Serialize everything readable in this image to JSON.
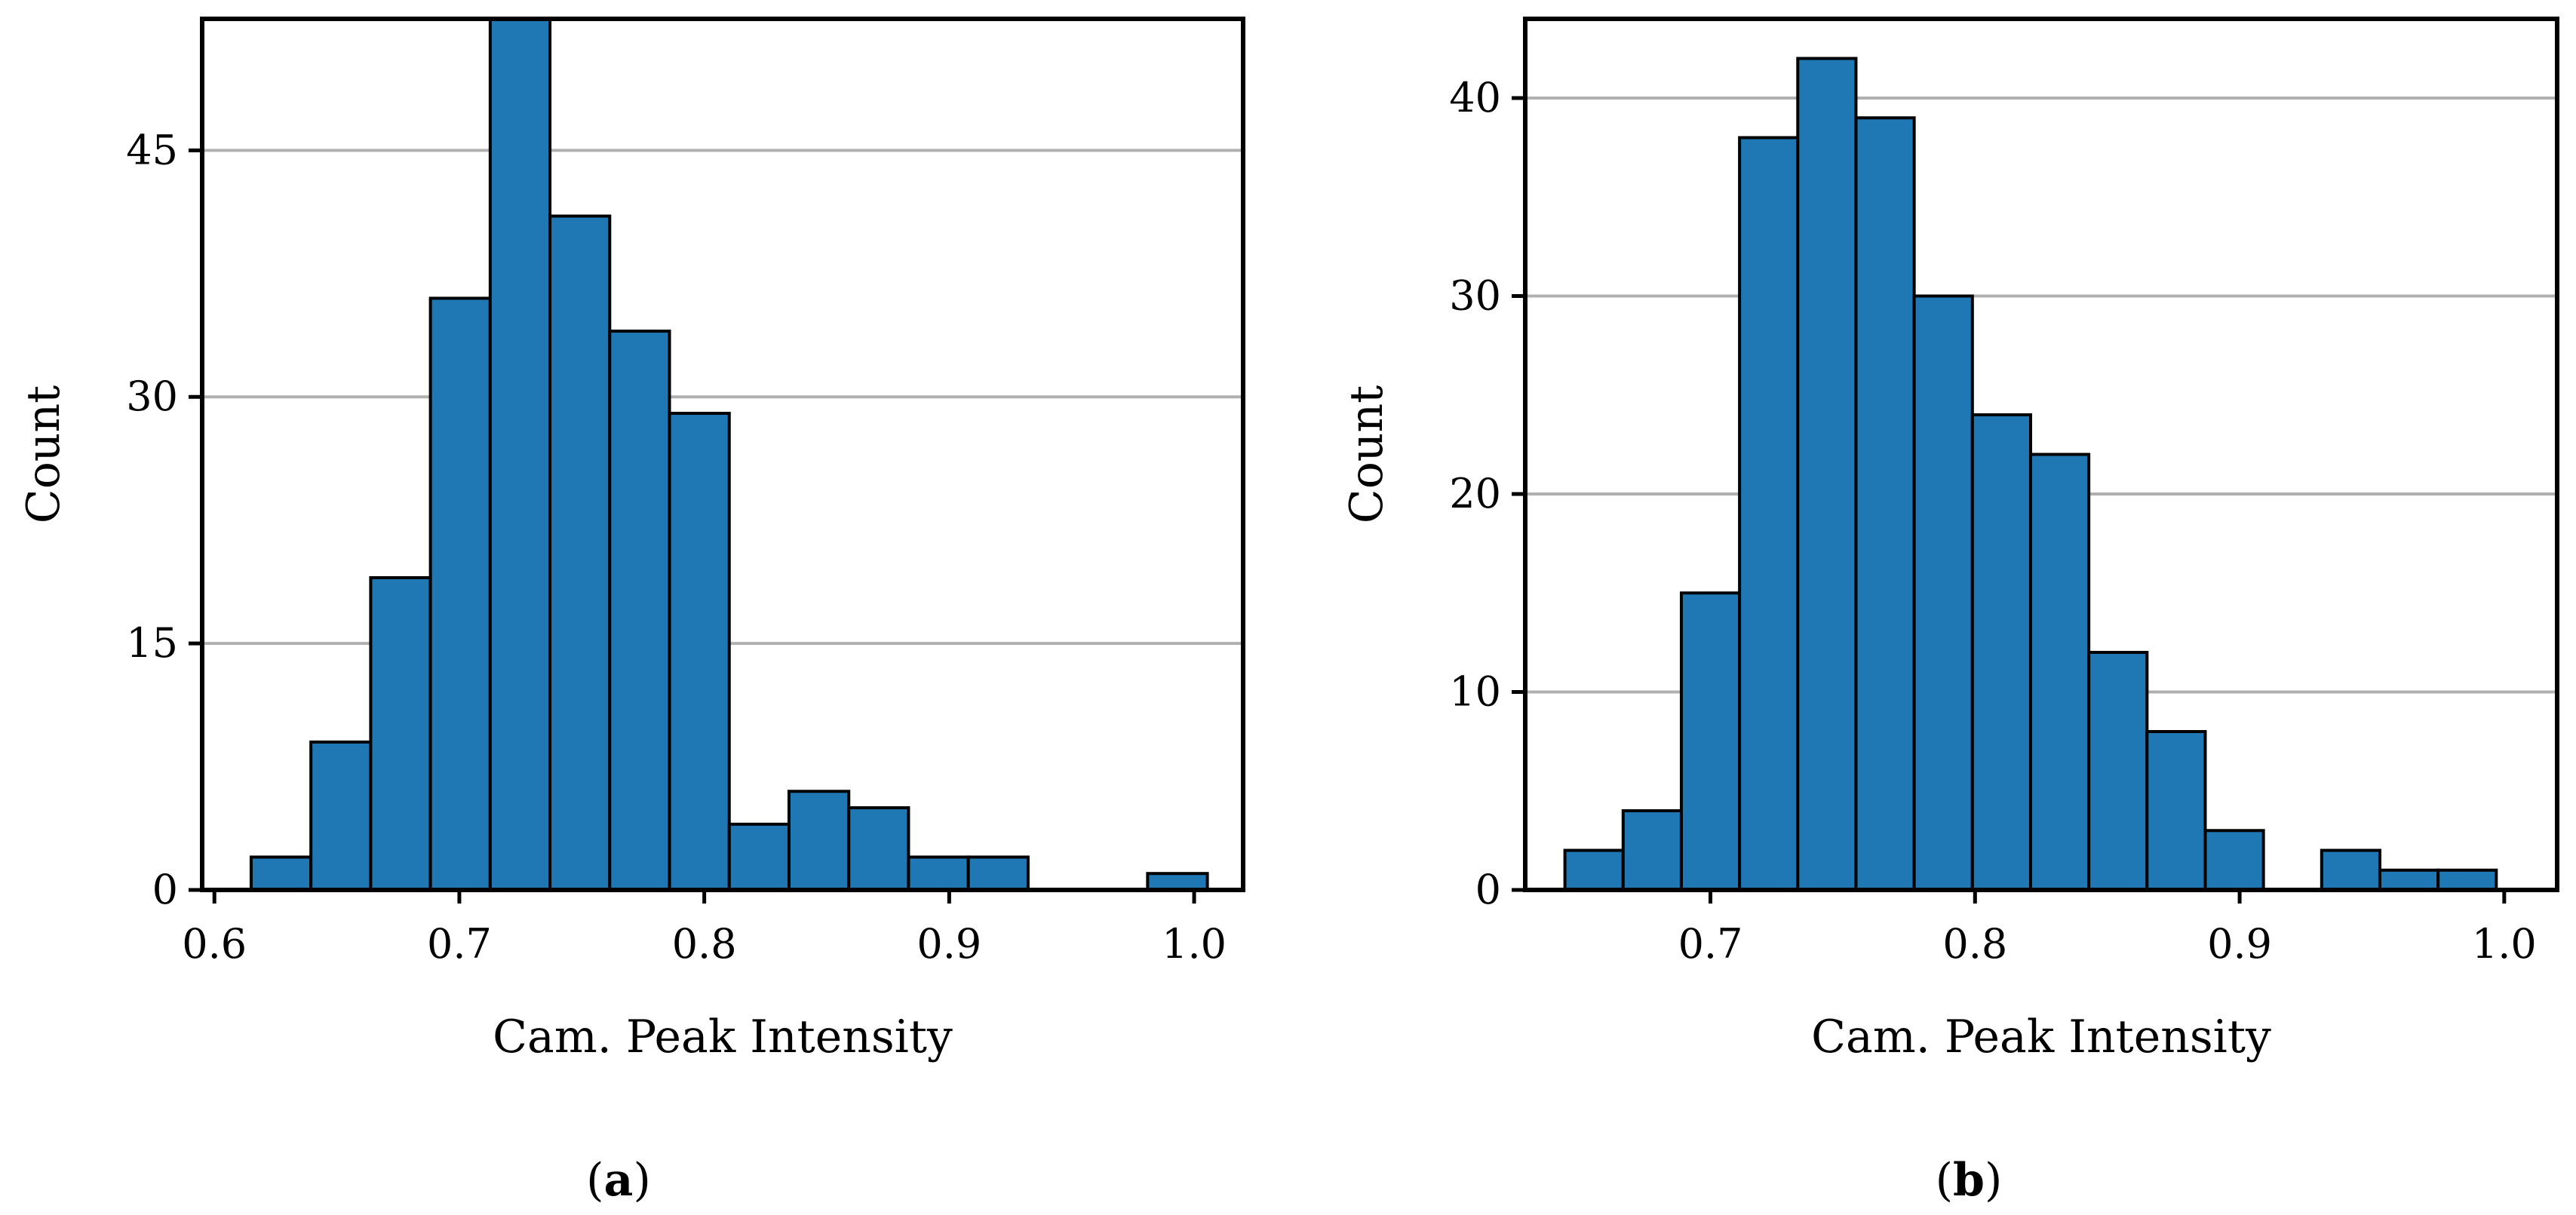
{
  "chart_data": [
    {
      "id": "a",
      "type": "bar",
      "caption_letter": "a",
      "xlabel": "Cam. Peak Intensity",
      "ylabel": "Count",
      "xlim": [
        0.595,
        1.02
      ],
      "ylim": [
        0,
        53
      ],
      "xticks": [
        0.6,
        0.7,
        0.8,
        0.9,
        1.0
      ],
      "xtick_labels": [
        "0.6",
        "0.7",
        "0.8",
        "0.9",
        "1.0"
      ],
      "yticks": [
        0,
        15,
        30,
        45
      ],
      "ytick_labels": [
        "0",
        "15",
        "30",
        "45"
      ],
      "grid": "y",
      "bin_edges": [
        0.615,
        0.6394,
        0.6638,
        0.6882,
        0.7126,
        0.737,
        0.7614,
        0.7858,
        0.8102,
        0.8346,
        0.859,
        0.8834,
        0.9078,
        0.9322,
        0.9566,
        0.981,
        1.0054
      ],
      "values": [
        2,
        9,
        19,
        36,
        53,
        41,
        34,
        29,
        4,
        6,
        5,
        2,
        2,
        0,
        0,
        1
      ],
      "bar_color": "#1f77b4",
      "edge_color": "#000000"
    },
    {
      "id": "b",
      "type": "bar",
      "caption_letter": "b",
      "xlabel": "Cam. Peak Intensity",
      "ylabel": "Count",
      "xlim": [
        0.63,
        1.02
      ],
      "ylim": [
        0,
        44
      ],
      "xticks": [
        0.7,
        0.8,
        0.9,
        1.0
      ],
      "xtick_labels": [
        "0.7",
        "0.8",
        "0.9",
        "1.0"
      ],
      "yticks": [
        0,
        10,
        20,
        30,
        40
      ],
      "ytick_labels": [
        "0",
        "10",
        "20",
        "30",
        "40"
      ],
      "grid": "y",
      "bin_edges": [
        0.645,
        0.667,
        0.689,
        0.711,
        0.733,
        0.755,
        0.777,
        0.799,
        0.821,
        0.843,
        0.865,
        0.887,
        0.909,
        0.931,
        0.953,
        0.975,
        0.997
      ],
      "values": [
        2,
        4,
        15,
        38,
        42,
        39,
        30,
        24,
        22,
        12,
        8,
        3,
        0,
        2,
        1,
        1
      ],
      "bar_color": "#1f77b4",
      "edge_color": "#000000"
    }
  ]
}
